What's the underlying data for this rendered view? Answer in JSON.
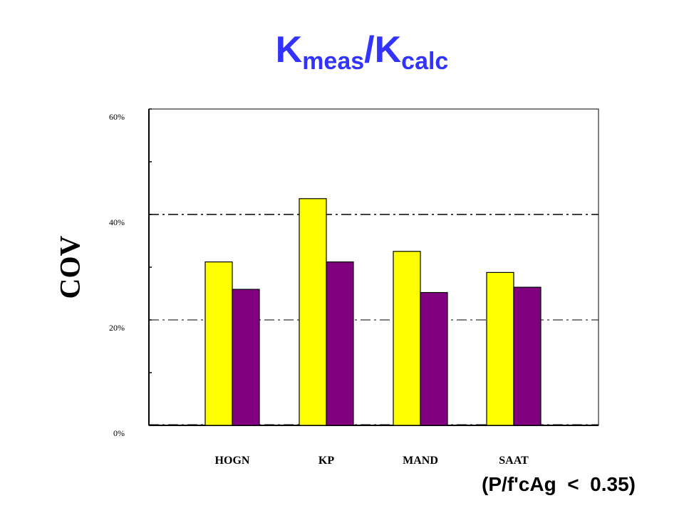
{
  "title": {
    "main1": "K",
    "sub1": "meas",
    "slash": "/",
    "main2": "K",
    "sub2": "calc",
    "color": "#3333ff"
  },
  "note": "(P/f'cAg  <  0.35)",
  "chart_data": {
    "type": "bar",
    "categories": [
      "HOGN",
      "KP",
      "MAND",
      "SAAT"
    ],
    "series": [
      {
        "values": [
          31,
          43,
          33,
          29
        ],
        "color": "#ffff00"
      },
      {
        "values": [
          25.8,
          31,
          25.2,
          26.2
        ],
        "color": "#800080"
      }
    ],
    "ylabel": "COV",
    "ylim": [
      0,
      60
    ],
    "yticks": [
      "0%",
      "20%",
      "40%",
      "60%"
    ],
    "ytick_values": [
      0,
      20,
      40,
      60
    ],
    "gridlines": [
      20,
      40
    ],
    "grid": "dash-dot",
    "legend": "none"
  }
}
